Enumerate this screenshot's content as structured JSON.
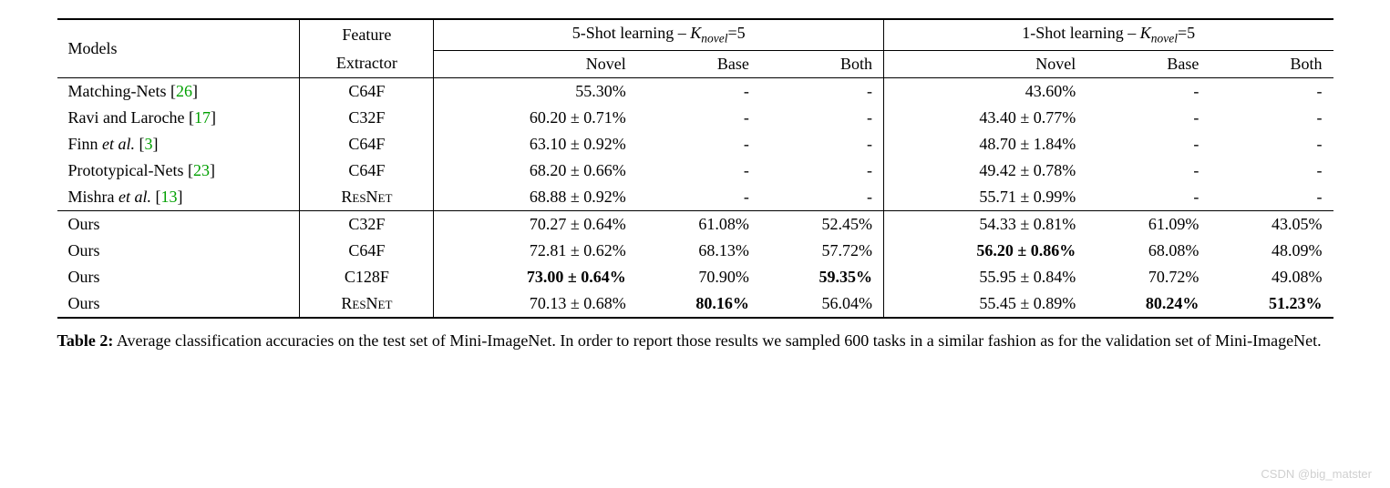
{
  "table": {
    "header": {
      "models": "Models",
      "extractor_line1": "Feature",
      "extractor_line2": "Extractor",
      "group5_prefix": "5-Shot learning – ",
      "group5_K": "K",
      "group5_sub": "novel",
      "group5_suffix": "=5",
      "group1_prefix": "1-Shot learning – ",
      "group1_K": "K",
      "group1_sub": "novel",
      "group1_suffix": "=5",
      "novel": "Novel",
      "base": "Base",
      "both": "Both"
    },
    "rows_top": [
      {
        "model_prefix": "Matching-Nets [",
        "cite": "26",
        "model_suffix": "]",
        "extractor": "C64F",
        "s5_novel": "55.30%",
        "s5_base": "-",
        "s5_both": "-",
        "s1_novel": "43.60%",
        "s1_base": "-",
        "s1_both": "-"
      },
      {
        "model_prefix": "Ravi and Laroche [",
        "cite": "17",
        "model_suffix": "]",
        "extractor": "C32F",
        "s5_novel": "60.20 ± 0.71%",
        "s5_base": "-",
        "s5_both": "-",
        "s1_novel": "43.40 ± 0.77%",
        "s1_base": "-",
        "s1_both": "-"
      },
      {
        "model_prefix": "Finn ",
        "model_italic": "et al.",
        "model_mid": " [",
        "cite": "3",
        "model_suffix": "]",
        "extractor": "C64F",
        "s5_novel": "63.10 ± 0.92%",
        "s5_base": "-",
        "s5_both": "-",
        "s1_novel": "48.70 ± 1.84%",
        "s1_base": "-",
        "s1_both": "-"
      },
      {
        "model_prefix": "Prototypical-Nets [",
        "cite": "23",
        "model_suffix": "]",
        "extractor": "C64F",
        "s5_novel": "68.20 ± 0.66%",
        "s5_base": "-",
        "s5_both": "-",
        "s1_novel": "49.42 ± 0.78%",
        "s1_base": "-",
        "s1_both": "-"
      },
      {
        "model_prefix": "Mishra ",
        "model_italic": "et al.",
        "model_mid": " [",
        "cite": "13",
        "model_suffix": "]",
        "extractor_sc": "ResNet",
        "s5_novel": "68.88 ± 0.92%",
        "s5_base": "-",
        "s5_both": "-",
        "s1_novel": "55.71 ± 0.99%",
        "s1_base": "-",
        "s1_both": "-"
      }
    ],
    "rows_bottom": [
      {
        "model": "Ours",
        "extractor": "C32F",
        "s5_novel": "70.27 ± 0.64%",
        "s5_base": "61.08%",
        "s5_both": "52.45%",
        "s1_novel": "54.33 ± 0.81%",
        "s1_base": "61.09%",
        "s1_both": "43.05%"
      },
      {
        "model": "Ours",
        "extractor": "C64F",
        "s5_novel": "72.81 ± 0.62%",
        "s5_base": "68.13%",
        "s5_both": "57.72%",
        "s1_novel_bold": "56.20 ± 0.86%",
        "s1_base": "68.08%",
        "s1_both": "48.09%"
      },
      {
        "model": "Ours",
        "extractor": "C128F",
        "s5_novel_bold": "73.00 ± 0.64%",
        "s5_base": "70.90%",
        "s5_both_bold": "59.35%",
        "s1_novel": "55.95 ± 0.84%",
        "s1_base": "70.72%",
        "s1_both": "49.08%"
      },
      {
        "model": "Ours",
        "extractor_sc": "ResNet",
        "s5_novel": "70.13 ± 0.68%",
        "s5_base_bold": "80.16%",
        "s5_both": "56.04%",
        "s1_novel": "55.45 ± 0.89%",
        "s1_base_bold": "80.24%",
        "s1_both_bold": "51.23%"
      }
    ]
  },
  "caption": {
    "label": "Table 2:",
    "text": " Average classification accuracies on the test set of Mini-ImageNet. In order to report those results we sampled 600 tasks in a similar fashion as for the validation set of Mini-ImageNet."
  },
  "watermark": "CSDN @big_matster"
}
